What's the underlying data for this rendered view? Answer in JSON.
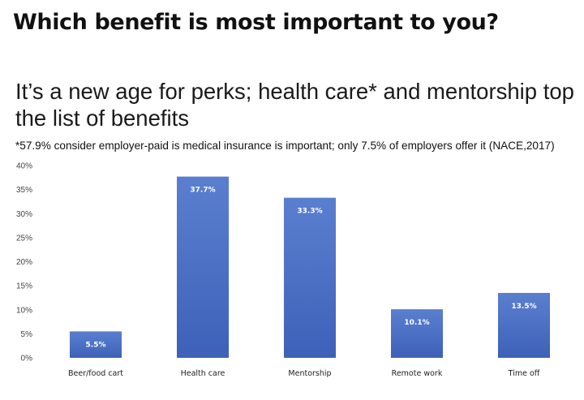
{
  "heading": "Which benefit is most important to you?",
  "chart_data": {
    "type": "bar",
    "title": "It’s a new age for perks; health care* and mentorship top the list of benefits",
    "note": "*57.9% consider employer-paid is medical insurance is important; only 7.5% of employers offer it (NACE,2017)",
    "categories": [
      "Beer/food cart",
      "Health care",
      "Mentorship",
      "Remote work",
      "Time off"
    ],
    "values": [
      5.5,
      37.7,
      33.3,
      10.1,
      13.5
    ],
    "value_labels": [
      "5.5%",
      "37.7%",
      "33.3%",
      "10.1%",
      "13.5%"
    ],
    "yticks": [
      "0%",
      "5%",
      "10%",
      "15%",
      "20%",
      "25%",
      "30%",
      "35%",
      "40%"
    ],
    "ylim": [
      0,
      40
    ],
    "xlabel": "",
    "ylabel": "",
    "grid": false,
    "legend": "none",
    "colors": {
      "bar_top": "#5b7fcf",
      "bar_bottom": "#3d61b8"
    }
  }
}
